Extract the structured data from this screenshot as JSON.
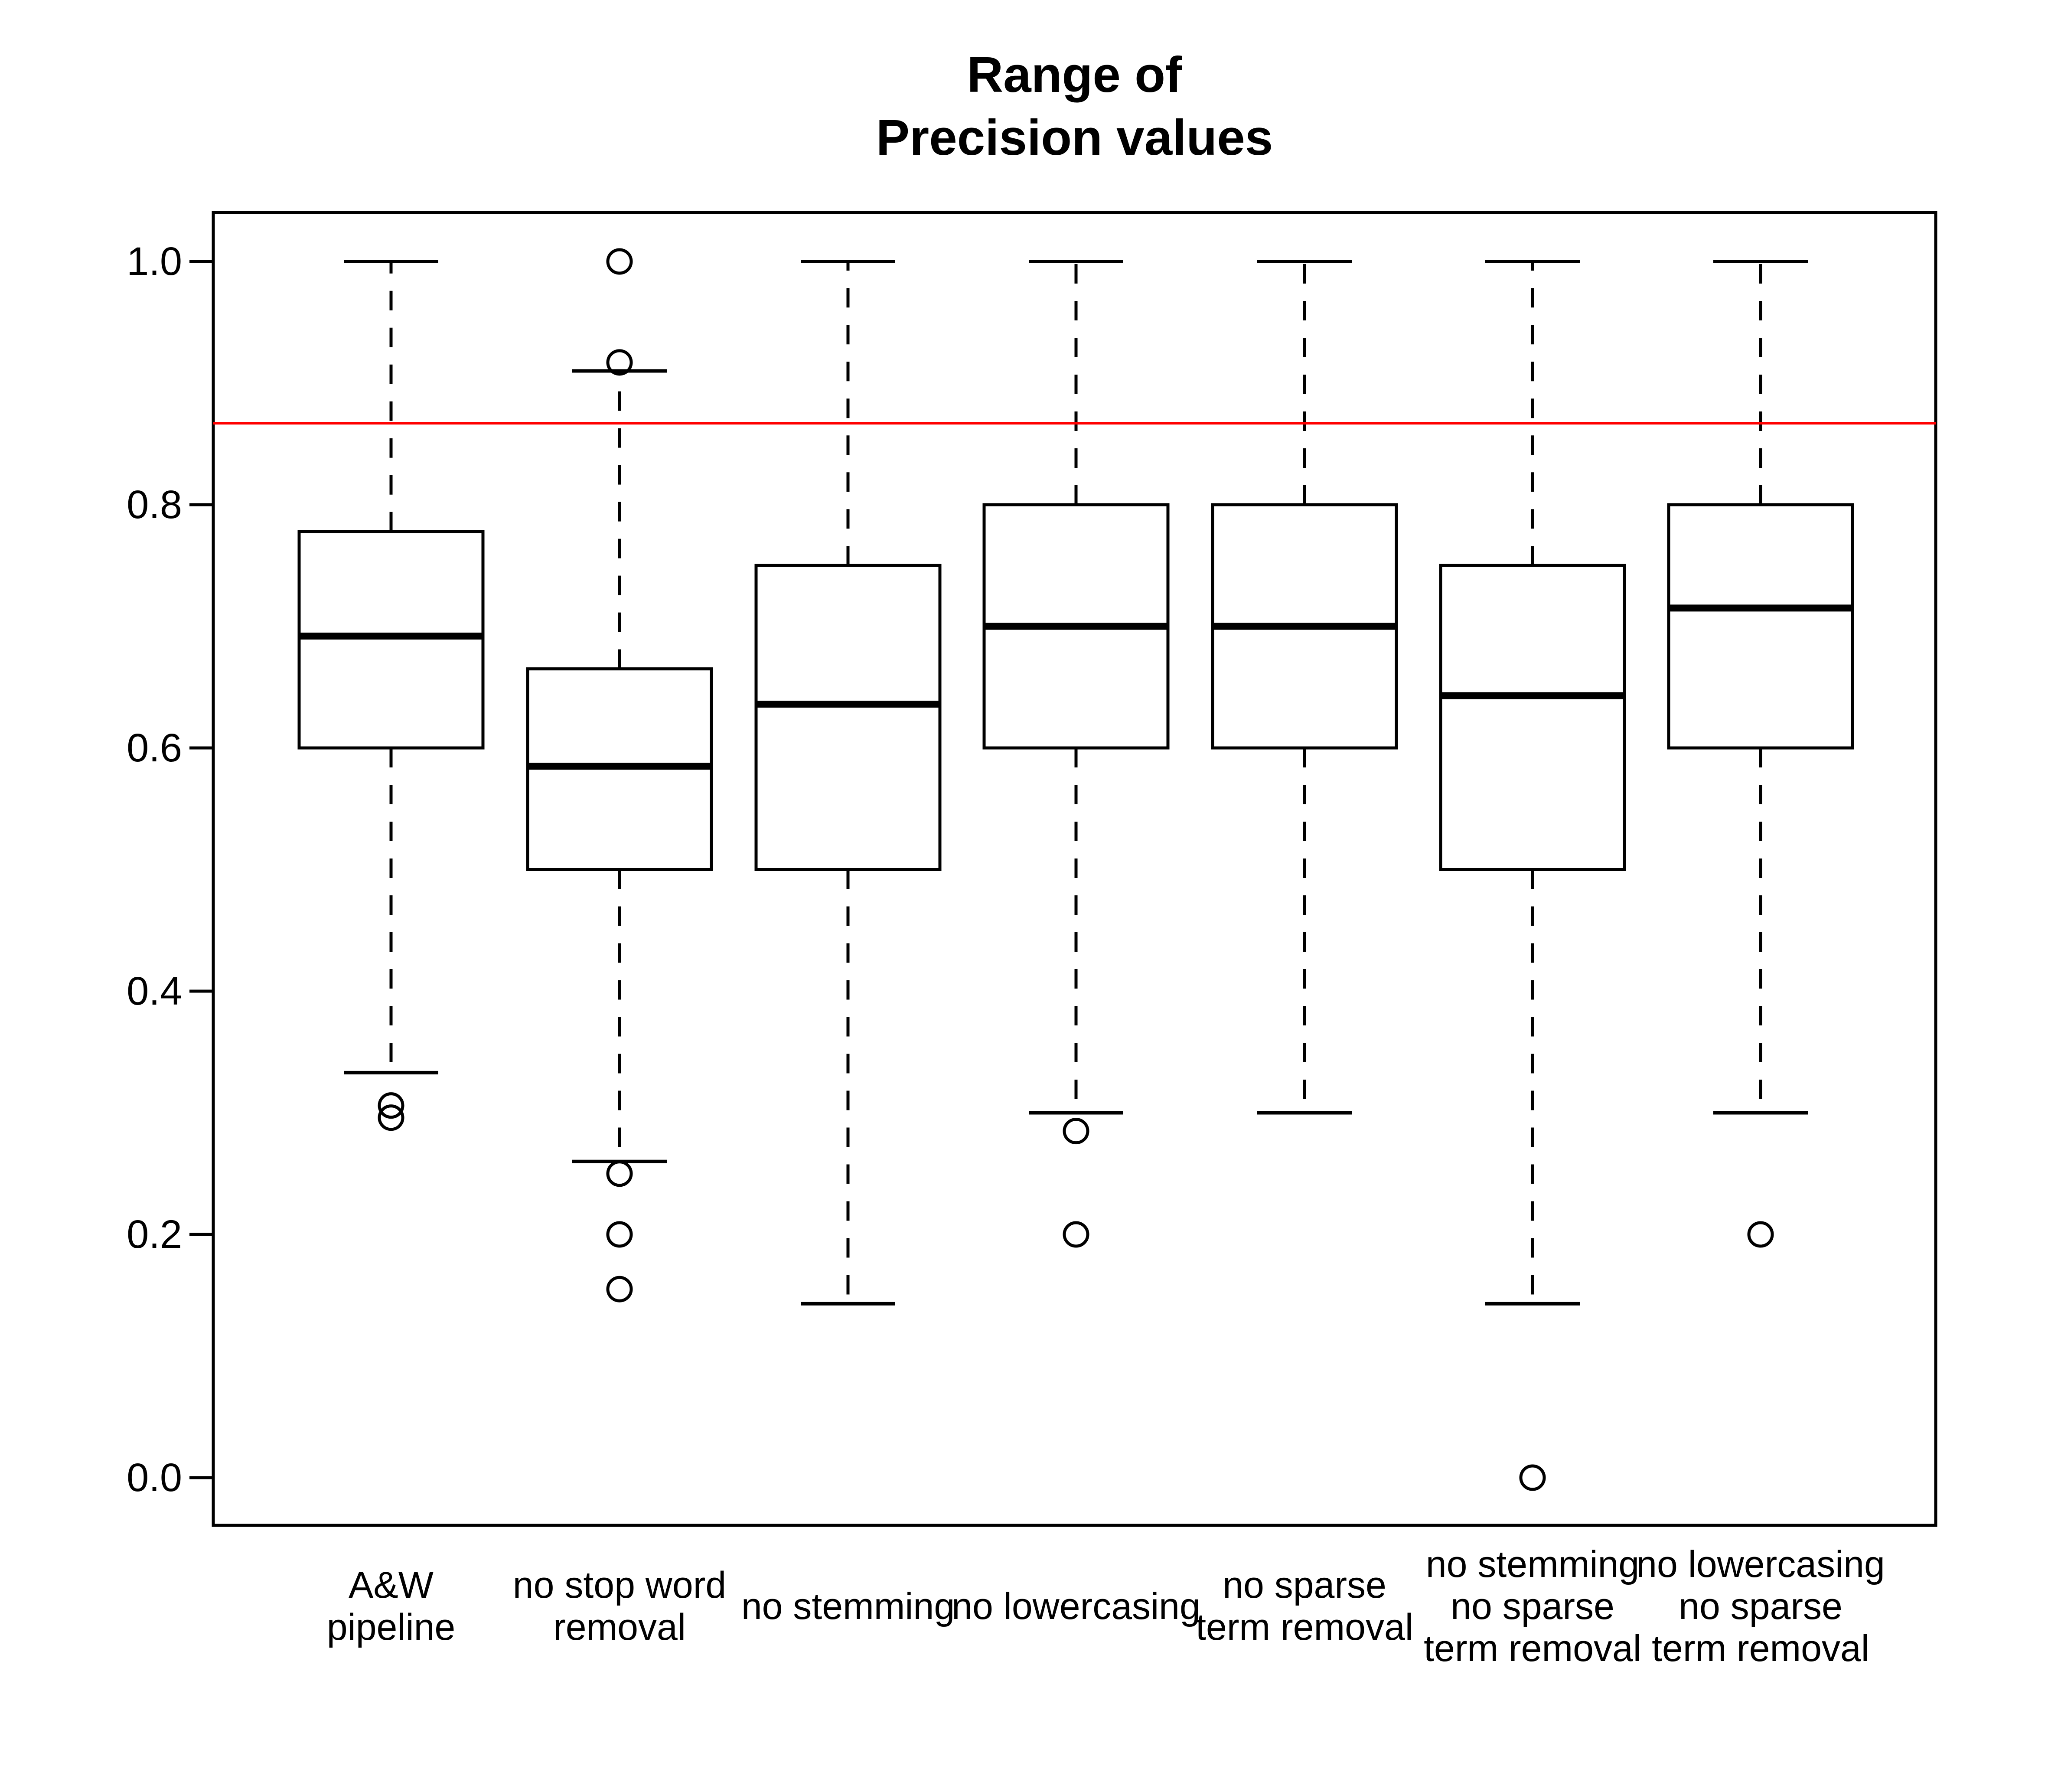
{
  "chart_data": {
    "type": "boxplot",
    "title": "Range of\nPrecision values",
    "xlabel": "",
    "ylabel": "",
    "ylim": [
      0.0,
      1.0
    ],
    "grid": false,
    "legend": null,
    "y_ticks": [
      {
        "value": 0.0,
        "label": "0.0"
      },
      {
        "value": 0.2,
        "label": "0.2"
      },
      {
        "value": 0.4,
        "label": "0.4"
      },
      {
        "value": 0.6,
        "label": "0.6"
      },
      {
        "value": 0.8,
        "label": "0.8"
      },
      {
        "value": 1.0,
        "label": "1.0"
      }
    ],
    "reference_line": {
      "value": 0.867,
      "color": "#FF0000"
    },
    "boxes": [
      {
        "label_lines": [
          "A&W",
          "pipeline"
        ],
        "whisker_low": 0.333,
        "q1": 0.6,
        "median": 0.692,
        "q3": 0.778,
        "whisker_high": 1.0,
        "outliers": [
          0.306,
          0.296
        ]
      },
      {
        "label_lines": [
          "no stop word",
          "removal"
        ],
        "whisker_low": 0.26,
        "q1": 0.5,
        "median": 0.585,
        "q3": 0.665,
        "whisker_high": 0.91,
        "outliers": [
          1.0,
          0.917,
          0.25,
          0.2,
          0.155
        ]
      },
      {
        "label_lines": [
          "no stemming"
        ],
        "whisker_low": 0.143,
        "q1": 0.5,
        "median": 0.636,
        "q3": 0.75,
        "whisker_high": 1.0,
        "outliers": []
      },
      {
        "label_lines": [
          "no lowercasing"
        ],
        "whisker_low": 0.3,
        "q1": 0.6,
        "median": 0.7,
        "q3": 0.8,
        "whisker_high": 1.0,
        "outliers": [
          0.285,
          0.2
        ]
      },
      {
        "label_lines": [
          "no sparse",
          "term removal"
        ],
        "whisker_low": 0.3,
        "q1": 0.6,
        "median": 0.7,
        "q3": 0.8,
        "whisker_high": 1.0,
        "outliers": []
      },
      {
        "label_lines": [
          "no stemming",
          "no sparse",
          "term removal"
        ],
        "whisker_low": 0.143,
        "q1": 0.5,
        "median": 0.643,
        "q3": 0.75,
        "whisker_high": 1.0,
        "outliers": [
          0.0
        ]
      },
      {
        "label_lines": [
          "no lowercasing",
          "no sparse",
          "term removal"
        ],
        "whisker_low": 0.3,
        "q1": 0.6,
        "median": 0.715,
        "q3": 0.8,
        "whisker_high": 1.0,
        "outliers": [
          0.2
        ]
      }
    ],
    "colors": {
      "box_stroke": "#000000",
      "box_fill": "#ffffff",
      "reference_line": "#FF0000",
      "text": "#000000"
    }
  }
}
